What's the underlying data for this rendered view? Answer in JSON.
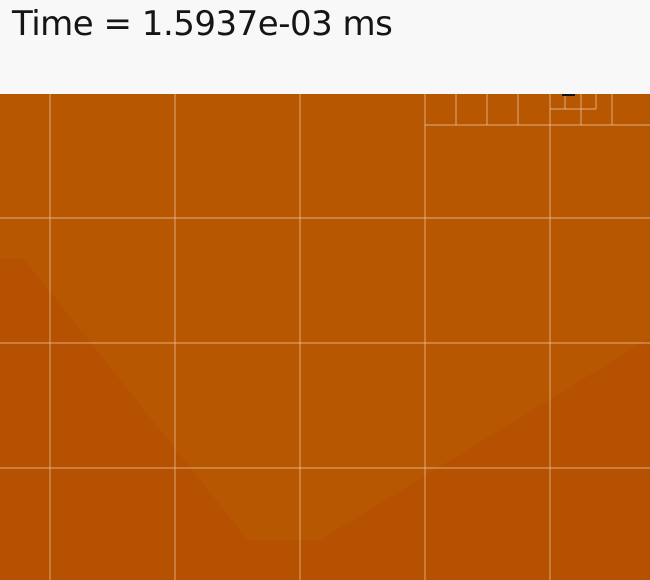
{
  "header": {
    "time_text": "Time = 1.5937e-03 ms"
  },
  "simulation": {
    "field_color_outer": "#b55100",
    "field_color_inner": "#b85702",
    "grid_line_color": "#f3d2b2"
  }
}
